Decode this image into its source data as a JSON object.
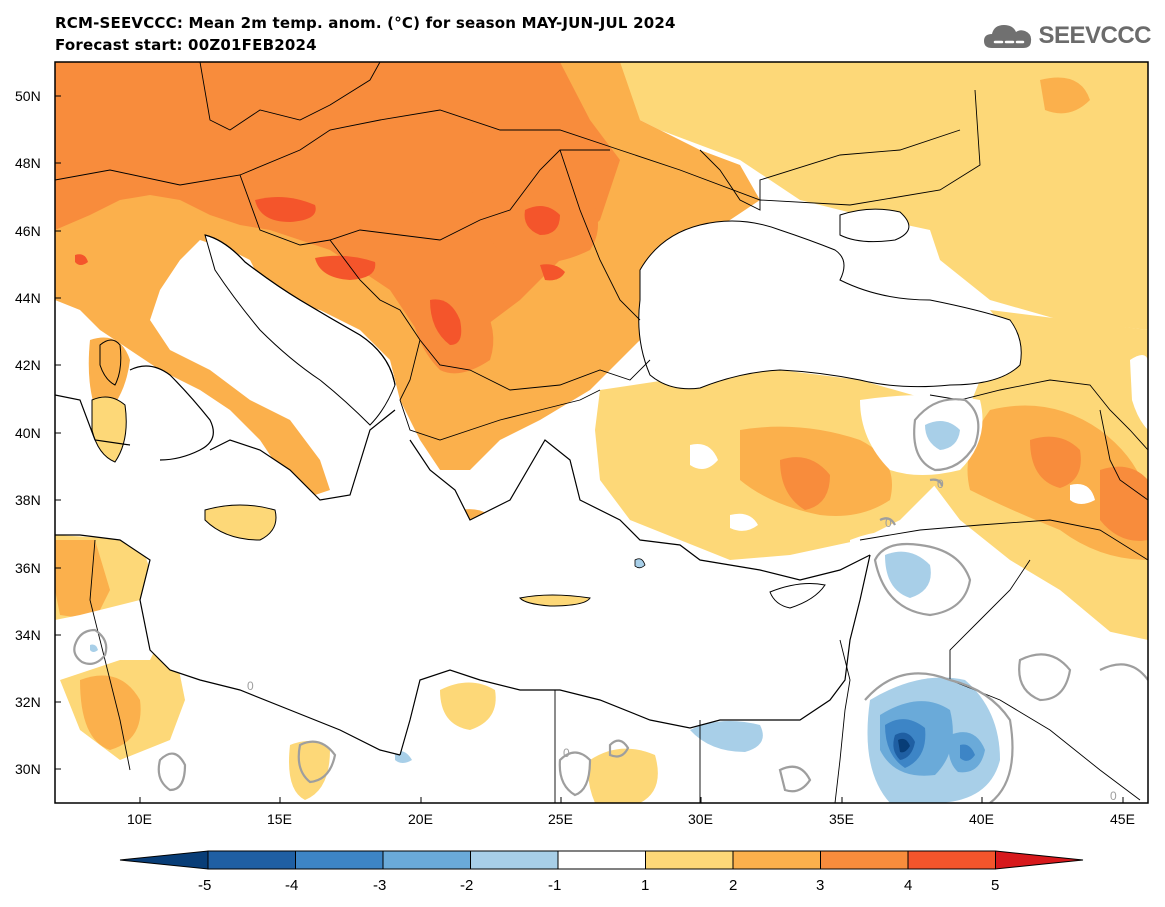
{
  "title_line_1": "RCM-SEEVCCC: Mean 2m temp. anom. (°C) for season MAY-JUN-JUL 2024",
  "title_line_2": "Forecast start: 00Z01FEB2024",
  "logo_text": "SEEVCCC",
  "map": {
    "lon_range": [
      7,
      45.5
    ],
    "lat_range": [
      29,
      51
    ],
    "lat_ticks": [
      "30N",
      "32N",
      "34N",
      "36N",
      "38N",
      "40N",
      "42N",
      "44N",
      "46N",
      "48N",
      "50N"
    ],
    "lon_ticks": [
      "10E",
      "15E",
      "20E",
      "25E",
      "30E",
      "35E",
      "40E",
      "45E"
    ],
    "contour_label": "0"
  },
  "colorbar": {
    "levels": [
      "-5",
      "-4",
      "-3",
      "-2",
      "-1",
      "1",
      "2",
      "3",
      "4",
      "5"
    ],
    "colors": {
      "below_-5": "#083d77",
      "-5_-4": "#1f5fa3",
      "-4_-3": "#3d85c6",
      "-3_-2": "#6aaad9",
      "-2_-1": "#a8cfe8",
      "-1_1": "#ffffff",
      "1_2": "#fdd878",
      "2_3": "#fbb04c",
      "3_4": "#f88c3c",
      "4_5": "#f4552b",
      "above_5": "#d7191c"
    }
  },
  "colors": {
    "land_line": "#000000",
    "contour_zero": "#9e9e9e"
  }
}
